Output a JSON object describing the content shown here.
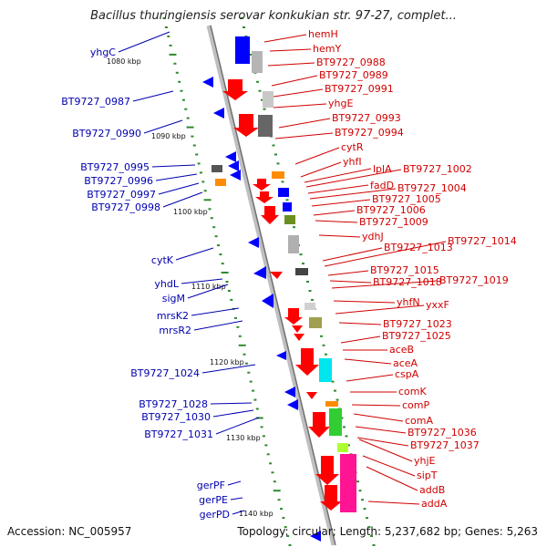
{
  "title": "Bacillus thuringiensis serovar konkukian str. 97-27, complet...",
  "footer": {
    "accession": "Accession: NC_005957",
    "topology": "Topology: circular; Length: 5,237,682 bp; Genes: 5,263"
  },
  "colors": {
    "backbone": "#9a9a9a",
    "tick": "#2e8b2e",
    "left_label": "#0000b0",
    "right_label": "#d00000",
    "forward_gene": "#ff0000",
    "reverse_gene": "#0000ff"
  },
  "scale_labels": [
    "1080 kbp",
    "1090 kbp",
    "1100 kbp",
    "1110 kbp",
    "1120 kbp",
    "1130 kbp",
    "1140 kbp"
  ],
  "left_genes": [
    "yhgC",
    "BT9727_0987",
    "BT9727_0990",
    "BT9727_0995",
    "BT9727_0996",
    "BT9727_0997",
    "BT9727_0998",
    "cytK",
    "yhdL",
    "sigM",
    "mrsK2",
    "mrsR2",
    "BT9727_1024",
    "BT9727_1028",
    "BT9727_1030",
    "BT9727_1031",
    "gerPF",
    "gerPE",
    "gerPD"
  ],
  "right_genes": [
    "hemH",
    "hemY",
    "BT9727_0988",
    "BT9727_0989",
    "BT9727_0991",
    "yhgE",
    "BT9727_0993",
    "BT9727_0994",
    "cytR",
    "yhfI",
    "lplA",
    "BT9727_1002",
    "fadD",
    "BT9727_1004",
    "BT9727_1005",
    "BT9727_1006",
    "BT9727_1009",
    "ydhJ",
    "BT9727_1013",
    "BT9727_1014",
    "BT9727_1015",
    "BT9727_1018",
    "BT9727_1019",
    "yhfN",
    "yxxF",
    "BT9727_1023",
    "BT9727_1025",
    "aceB",
    "aceA",
    "cspA",
    "comK",
    "comP",
    "comA",
    "BT9727_1036",
    "BT9727_1037",
    "yhjE",
    "sipT",
    "addB",
    "addA"
  ]
}
